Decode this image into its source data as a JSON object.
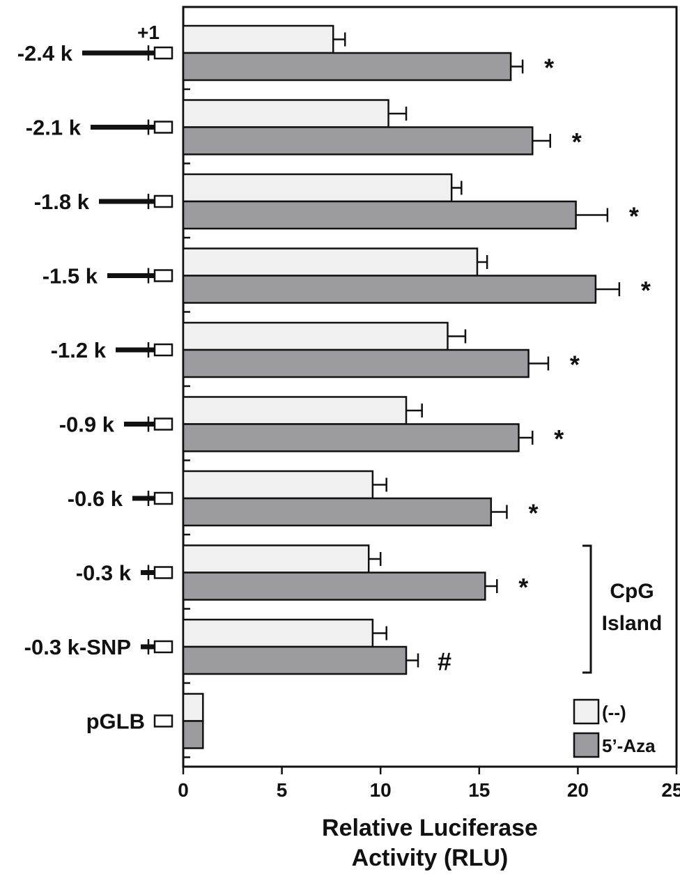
{
  "chart_data": {
    "type": "bar",
    "orientation": "horizontal",
    "xlabel_lines": [
      "Relative Luciferase",
      "Activity (RLU)"
    ],
    "xlim": [
      0,
      25
    ],
    "xticks": [
      0,
      5,
      10,
      15,
      20,
      25
    ],
    "categories": [
      "-2.4 k",
      "-2.1 k",
      "-1.8 k",
      "-1.5 k",
      "-1.2 k",
      "-0.9 k",
      "-0.6 k",
      "-0.3 k",
      "-0.3 k-SNP",
      "pGLB"
    ],
    "series": [
      {
        "name": "(--)",
        "color": "#f0f0f0",
        "values": [
          7.6,
          10.4,
          13.6,
          14.9,
          13.4,
          11.3,
          9.6,
          9.4,
          9.6,
          1.0
        ],
        "errors": [
          0.6,
          0.9,
          0.5,
          0.5,
          0.9,
          0.8,
          0.7,
          0.6,
          0.7,
          0
        ]
      },
      {
        "name": "5’-Aza",
        "color": "#9b9ba0",
        "values": [
          16.6,
          17.7,
          19.9,
          20.9,
          17.5,
          17.0,
          15.6,
          15.3,
          11.3,
          1.0
        ],
        "errors": [
          0.6,
          0.9,
          1.6,
          1.2,
          1.0,
          0.7,
          0.8,
          0.6,
          0.6,
          0
        ]
      }
    ],
    "significance": [
      "*",
      "*",
      "*",
      "*",
      "*",
      "*",
      "*",
      "*",
      "#",
      ""
    ],
    "promoter_start_label": "+1",
    "construct_line_kb": [
      2.4,
      2.1,
      1.8,
      1.5,
      1.2,
      0.9,
      0.6,
      0.3,
      0.3,
      0
    ],
    "bracket": {
      "label_lines": [
        "CpG",
        "Island"
      ],
      "categories": [
        "-0.3 k",
        "-0.3 k-SNP"
      ]
    },
    "legend_position": "bottom-right",
    "grid": false
  }
}
